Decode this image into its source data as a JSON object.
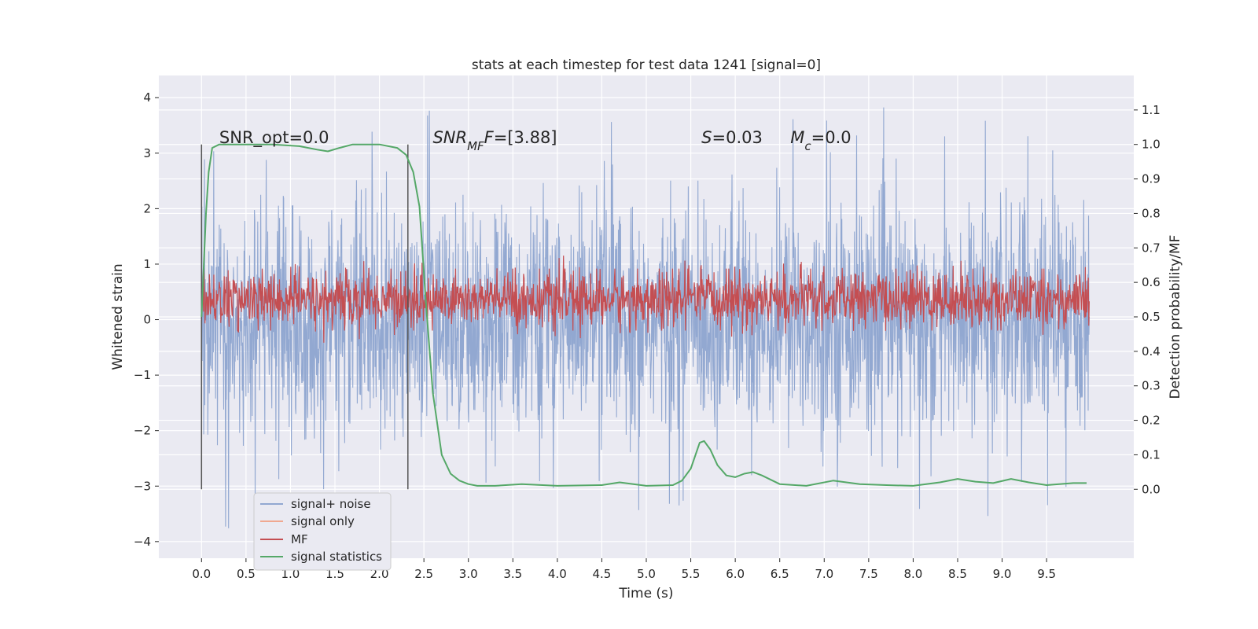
{
  "chart_data": {
    "type": "line",
    "title": "stats at each timestep for test data 1241 [signal=0]",
    "xlabel": "Time (s)",
    "ylabel": "Whitened strain",
    "y2label": "Detection probability/MF",
    "xlim": [
      -0.48,
      10.48
    ],
    "ylim": [
      -4.3,
      4.4
    ],
    "y2lim": [
      -0.2,
      1.2
    ],
    "x_ticks": [
      0.0,
      0.5,
      1.0,
      1.5,
      2.0,
      2.5,
      3.0,
      3.5,
      4.0,
      4.5,
      5.0,
      5.5,
      6.0,
      6.5,
      7.0,
      7.5,
      8.0,
      8.5,
      9.0,
      9.5
    ],
    "x_tick_labels": [
      "0.0",
      "0.5",
      "1.0",
      "1.5",
      "2.0",
      "2.5",
      "3.0",
      "3.5",
      "4.0",
      "4.5",
      "5.0",
      "5.5",
      "6.0",
      "6.5",
      "7.0",
      "7.5",
      "8.0",
      "8.5",
      "9.0",
      "9.5"
    ],
    "y_ticks": [
      4,
      3,
      2,
      1,
      0,
      -1,
      -2,
      -3,
      -4
    ],
    "y_tick_labels": [
      "4",
      "3",
      "2",
      "1",
      "0",
      "−1",
      "−2",
      "−3",
      "−4"
    ],
    "y2_ticks": [
      1.1,
      1.0,
      0.9,
      0.8,
      0.7,
      0.6,
      0.5,
      0.4,
      0.3,
      0.2,
      0.1,
      0.0
    ],
    "y2_tick_labels": [
      "1.1",
      "1.0",
      "0.9",
      "0.8",
      "0.7",
      "0.6",
      "0.5",
      "0.4",
      "0.3",
      "0.2",
      "0.1",
      "0.0"
    ],
    "grid": true,
    "legend_position": "lower-left",
    "series": [
      {
        "name": "signal+ noise",
        "color": "#92a8d1",
        "axis": "left",
        "x_range": [
          0.0,
          9.98
        ],
        "mean": 0.0,
        "approx_amplitude": 1.0,
        "extremes": [
          -3.9,
          4.05
        ]
      },
      {
        "name": "signal only",
        "color": "#f0a890",
        "axis": "left",
        "values": []
      },
      {
        "name": "MF",
        "color": "#c44e52",
        "axis": "right",
        "x_range": [
          0.0,
          9.98
        ],
        "approx_band": [
          0.5,
          0.6
        ]
      },
      {
        "name": "signal statistics",
        "color": "#55a868",
        "axis": "right",
        "x": [
          0.0,
          0.05,
          0.08,
          0.12,
          0.2,
          0.4,
          0.8,
          1.1,
          1.3,
          1.42,
          1.55,
          1.7,
          2.0,
          2.2,
          2.3,
          2.38,
          2.45,
          2.52,
          2.6,
          2.7,
          2.8,
          2.9,
          3.0,
          3.1,
          3.3,
          3.6,
          4.0,
          4.5,
          4.7,
          5.0,
          5.3,
          5.4,
          5.5,
          5.6,
          5.65,
          5.72,
          5.8,
          5.9,
          6.0,
          6.1,
          6.2,
          6.3,
          6.5,
          6.8,
          7.1,
          7.4,
          7.7,
          8.0,
          8.3,
          8.5,
          8.7,
          8.9,
          9.1,
          9.3,
          9.5,
          9.8,
          9.95
        ],
        "y": [
          0.5,
          0.8,
          0.92,
          0.99,
          1.0,
          1.0,
          1.0,
          0.995,
          0.985,
          0.98,
          0.99,
          1.0,
          1.0,
          0.99,
          0.97,
          0.92,
          0.82,
          0.55,
          0.28,
          0.1,
          0.045,
          0.025,
          0.015,
          0.01,
          0.01,
          0.015,
          0.01,
          0.012,
          0.02,
          0.01,
          0.012,
          0.025,
          0.06,
          0.135,
          0.14,
          0.115,
          0.07,
          0.04,
          0.035,
          0.045,
          0.05,
          0.04,
          0.015,
          0.01,
          0.025,
          0.015,
          0.012,
          0.01,
          0.02,
          0.03,
          0.022,
          0.018,
          0.03,
          0.02,
          0.012,
          0.018,
          0.018
        ]
      }
    ],
    "vertical_lines": [
      0.0,
      2.32
    ],
    "annotations": [
      {
        "x": 0.2,
        "y": 3.18,
        "parts": [
          {
            "t": "SNR_opt=0.0",
            "i": false
          }
        ]
      },
      {
        "x": 2.6,
        "y": 3.18,
        "parts": [
          {
            "t": "SNR",
            "i": true
          },
          {
            "t": "MF",
            "i": true,
            "sub": true
          },
          {
            "t": "F",
            "i": true
          },
          {
            "t": "=[3.88]",
            "i": false
          }
        ]
      },
      {
        "x": 5.62,
        "y": 3.18,
        "parts": [
          {
            "t": "S",
            "i": true
          },
          {
            "t": "=0.03",
            "i": false
          }
        ]
      },
      {
        "x": 6.62,
        "y": 3.18,
        "parts": [
          {
            "t": "M",
            "i": true
          },
          {
            "t": "c",
            "i": true,
            "sub": true
          },
          {
            "t": "=0.0",
            "i": false
          }
        ]
      }
    ]
  }
}
